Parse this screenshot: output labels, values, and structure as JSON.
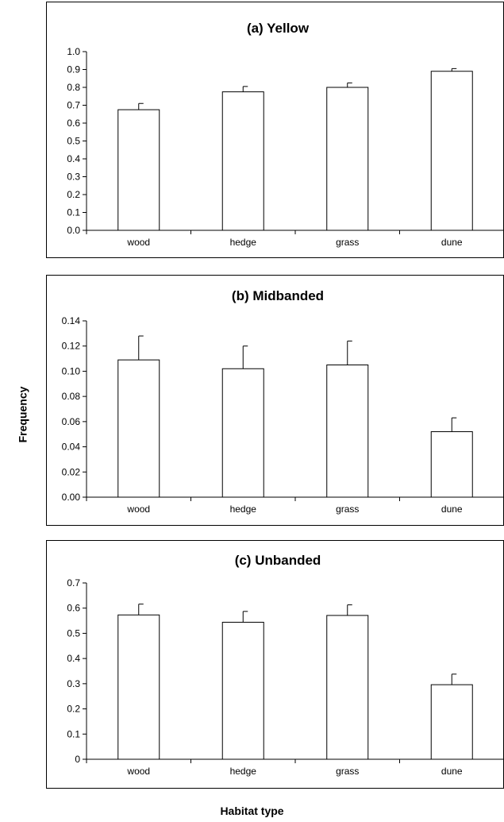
{
  "figure": {
    "ylabel": "Frequency",
    "xlabel": "Habitat type"
  },
  "chart_data": [
    {
      "type": "bar",
      "title": "(a) Yellow",
      "categories": [
        "wood",
        "hedge",
        "grass",
        "dune"
      ],
      "values": [
        0.675,
        0.775,
        0.8,
        0.89
      ],
      "errors": [
        0.035,
        0.03,
        0.025,
        0.015
      ],
      "ylim": [
        0,
        1.0
      ],
      "yticks": [
        "0.0",
        "0.1",
        "0.2",
        "0.3",
        "0.4",
        "0.5",
        "0.6",
        "0.7",
        "0.8",
        "0.9",
        "1.0"
      ],
      "xlabel": "",
      "ylabel": "",
      "grid": false
    },
    {
      "type": "bar",
      "title": "(b) Midbanded",
      "categories": [
        "wood",
        "hedge",
        "grass",
        "dune"
      ],
      "values": [
        0.109,
        0.102,
        0.105,
        0.052
      ],
      "errors": [
        0.019,
        0.018,
        0.019,
        0.011
      ],
      "ylim": [
        0,
        0.14
      ],
      "yticks": [
        "0.00",
        "0.02",
        "0.04",
        "0.06",
        "0.08",
        "0.10",
        "0.12",
        "0.14"
      ],
      "xlabel": "",
      "ylabel": "",
      "grid": false
    },
    {
      "type": "bar",
      "title": "(c) Unbanded",
      "categories": [
        "wood",
        "hedge",
        "grass",
        "dune"
      ],
      "values": [
        0.573,
        0.544,
        0.571,
        0.296
      ],
      "errors": [
        0.043,
        0.043,
        0.042,
        0.042
      ],
      "ylim": [
        0,
        0.7
      ],
      "yticks": [
        "0",
        "0.1",
        "0.2",
        "0.3",
        "0.4",
        "0.5",
        "0.6",
        "0.7"
      ],
      "xlabel": "",
      "ylabel": "",
      "grid": false
    }
  ]
}
